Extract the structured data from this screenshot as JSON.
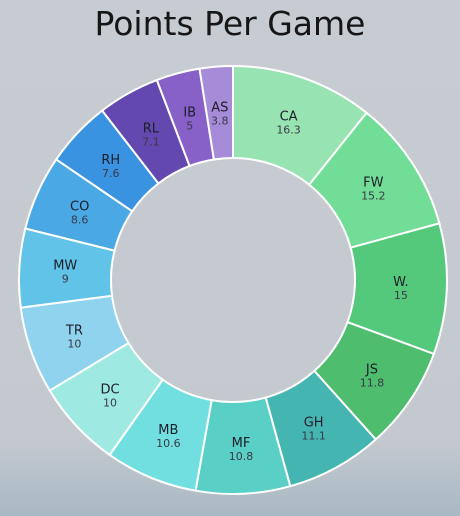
{
  "chart_data": {
    "type": "donut",
    "title": "Points Per Game",
    "categories": [
      "CA",
      "FW",
      "W.",
      "JS",
      "GH",
      "MF",
      "MB",
      "DC",
      "TR",
      "MW",
      "CO",
      "RH",
      "RL",
      "IB",
      "AS"
    ],
    "values": [
      16.3,
      15.2,
      15,
      11.8,
      11.1,
      10.8,
      10.6,
      10,
      10,
      9,
      8.6,
      7.6,
      7.1,
      5,
      3.8
    ],
    "value_labels": [
      "16.3",
      "15.2",
      "15",
      "11.8",
      "11.1",
      "10.8",
      "10.6",
      "10",
      "10",
      "9",
      "8.6",
      "7.6",
      "7.1",
      "5",
      "3.8"
    ],
    "colors": [
      "#97e4b2",
      "#72dd96",
      "#55c97b",
      "#4ebd6d",
      "#45b5b1",
      "#5acfc6",
      "#71dfe0",
      "#9eeae3",
      "#8fd3ef",
      "#62c3e9",
      "#4aa9e4",
      "#3a93e1",
      "#6348b0",
      "#8760c8",
      "#a68bd8"
    ],
    "legend": "none"
  }
}
